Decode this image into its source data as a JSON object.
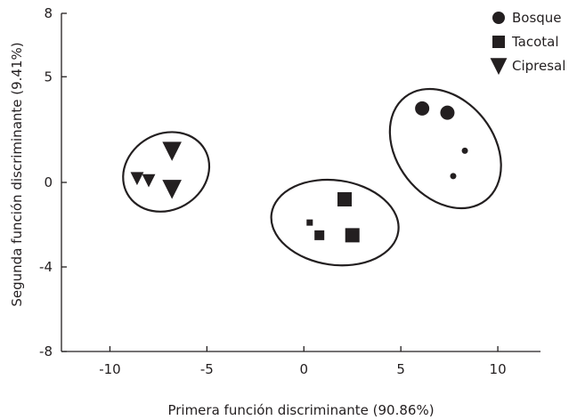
{
  "chart_data": {
    "type": "scatter",
    "xlabel": "Primera función discriminante (90.86%)",
    "ylabel": "Segunda función discriminante (9.41%)",
    "xlim": [
      -12.5,
      12.2
    ],
    "ylim": [
      -8,
      8
    ],
    "xticks": [
      -10,
      -5,
      0,
      5,
      10
    ],
    "yticks": [
      8,
      5,
      0,
      -4,
      -8
    ],
    "grid": false,
    "legend_position": "top-right",
    "point_color": "#231f20",
    "series": [
      {
        "name": "Bosque",
        "marker": "circle",
        "points": [
          {
            "x": 6.1,
            "y": 3.5,
            "size": "large"
          },
          {
            "x": 7.4,
            "y": 3.3,
            "size": "large"
          },
          {
            "x": 8.3,
            "y": 1.5,
            "size": "small"
          },
          {
            "x": 7.7,
            "y": 0.3,
            "size": "small"
          }
        ],
        "ellipse": {
          "cx": 7.3,
          "cy": 1.6,
          "rx": 2.5,
          "ry": 3.1,
          "angle_deg": -38
        }
      },
      {
        "name": "Tacotal",
        "marker": "square",
        "points": [
          {
            "x": 2.1,
            "y": -0.8,
            "size": "large"
          },
          {
            "x": 2.5,
            "y": -2.5,
            "size": "large"
          },
          {
            "x": 0.8,
            "y": -2.5,
            "size": "medium"
          },
          {
            "x": 0.3,
            "y": -1.9,
            "size": "small"
          }
        ],
        "ellipse": {
          "cx": 1.6,
          "cy": -1.9,
          "rx": 3.3,
          "ry": 2.0,
          "angle_deg": 8
        }
      },
      {
        "name": "Cipresal",
        "marker": "triangle-down",
        "points": [
          {
            "x": -6.8,
            "y": 1.5,
            "size": "large"
          },
          {
            "x": -6.8,
            "y": -0.3,
            "size": "large"
          },
          {
            "x": -8.6,
            "y": 0.2,
            "size": "medium"
          },
          {
            "x": -8.0,
            "y": 0.1,
            "size": "medium"
          }
        ],
        "ellipse": {
          "cx": -7.1,
          "cy": 0.5,
          "rx": 2.3,
          "ry": 1.8,
          "angle_deg": -30
        }
      }
    ]
  }
}
